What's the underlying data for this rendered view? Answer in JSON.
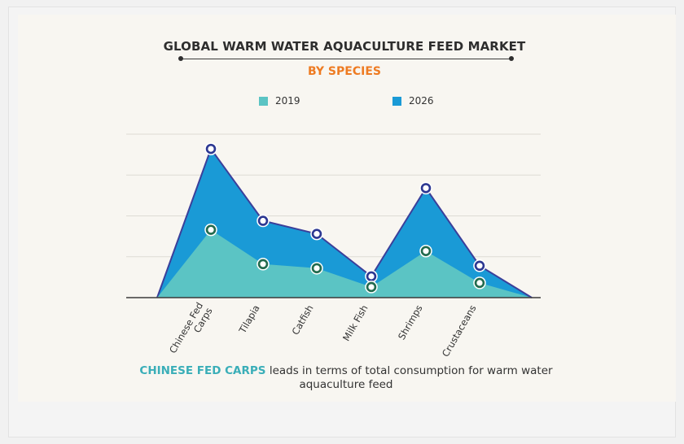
{
  "chart_data": {
    "type": "area",
    "title": "GLOBAL WARM WATER AQUACULTURE FEED MARKET",
    "subtitle": "BY SPECIES",
    "categories": [
      "Chinese Fed Carps",
      "Tilapia",
      "Catfish",
      "Milk Fish",
      "Shrimps",
      "Crustaceans"
    ],
    "series": [
      {
        "name": "2019",
        "values": [
          83,
          41,
          36,
          13,
          57,
          18
        ],
        "color": "#5bc4c4"
      },
      {
        "name": "2026",
        "values": [
          182,
          94,
          78,
          26,
          134,
          39
        ],
        "color": "#1a9ad6"
      }
    ],
    "ylim": [
      0,
      200
    ],
    "grid": true,
    "legend": "top",
    "marker_outline_colors": {
      "2019": "#226b4e",
      "2026": "#2d3892"
    },
    "outline_color": "#3b3f9a"
  },
  "caption": {
    "highlight": "CHINESE FED CARPS",
    "text": " leads in terms of total consumption for warm water aquaculture feed"
  }
}
